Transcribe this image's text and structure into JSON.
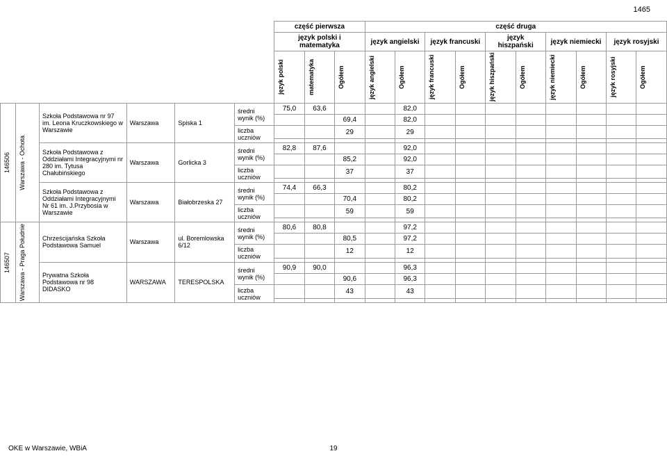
{
  "page_number_top": "1465",
  "headers": {
    "part1": "część pierwsza",
    "part2": "część druga",
    "group1": "język polski i matematyka",
    "group2": "język angielski",
    "group3": "język francuski",
    "group4": "język hiszpański",
    "group5": "język niemiecki",
    "group6": "język rosyjski",
    "sub": {
      "jp": "język polski",
      "mat": "matematyka",
      "og": "Ogółem",
      "ang": "język angielski",
      "fra": "język francuski",
      "his": "język hiszpański",
      "nie": "język niemiecki",
      "ros": "język rosyjski"
    }
  },
  "row_labels": {
    "sredni": "średni wynik (%)",
    "liczba": "liczba uczniów"
  },
  "districts": [
    {
      "code": "146506",
      "name": "Warszawa - Ochota",
      "schools": [
        {
          "name": "Szkoła Podstawowa nr 97 im. Leona Kruczkowskiego w Warszawie",
          "city": "Warszawa",
          "street": "Spiska 1",
          "r1": {
            "jp": "75,0",
            "mat": "63,6",
            "og1": "",
            "ang": "",
            "og2": "82,0"
          },
          "r2": {
            "og1": "69,4",
            "og2": "82,0"
          },
          "r3": {
            "og1": "29",
            "og2": "29"
          }
        },
        {
          "name": "Szkoła Podstawowa z Oddziałami Integracyjnymi nr 280 im. Tytusa Chałubińskiego",
          "city": "Warszawa",
          "street": "Gorlicka 3",
          "r1": {
            "jp": "82,8",
            "mat": "87,6",
            "og1": "",
            "ang": "",
            "og2": "92,0"
          },
          "r2": {
            "og1": "85,2",
            "og2": "92,0"
          },
          "r3": {
            "og1": "37",
            "og2": "37"
          }
        },
        {
          "name": "Szkoła Podstawowa z Oddziałami Integracyjnymi Nr 61 im. J.Przybosia w Warszawie",
          "city": "Warszawa",
          "street": "Białobrzeska 27",
          "r1": {
            "jp": "74,4",
            "mat": "66,3",
            "og1": "",
            "ang": "",
            "og2": "80,2"
          },
          "r2": {
            "og1": "70,4",
            "og2": "80,2"
          },
          "r3": {
            "og1": "59",
            "og2": "59"
          }
        }
      ]
    },
    {
      "code": "146507",
      "name": "Warszawa - Praga Południe",
      "schools": [
        {
          "name": "Chrześcijańska Szkoła Podstawowa Samuel",
          "city": "Warszawa",
          "street": "ul. Boremlowska 6/12",
          "r1": {
            "jp": "80,6",
            "mat": "80,8",
            "og1": "",
            "ang": "",
            "og2": "97,2"
          },
          "r2": {
            "og1": "80,5",
            "og2": "97,2"
          },
          "r3": {
            "og1": "12",
            "og2": "12"
          }
        },
        {
          "name": "Prywatna Szkoła Podstawowa nr 98 DIDASKO",
          "city": "WARSZAWA",
          "street": "TERESPOLSKA",
          "r1": {
            "jp": "90,9",
            "mat": "90,0",
            "og1": "",
            "ang": "",
            "og2": "96,3"
          },
          "r2": {
            "og1": "90,6",
            "og2": "96,3"
          },
          "r3": {
            "og1": "43",
            "og2": "43"
          }
        }
      ]
    }
  ],
  "footer_left": "OKE w Warszawie, WBiA",
  "footer_page": "19"
}
